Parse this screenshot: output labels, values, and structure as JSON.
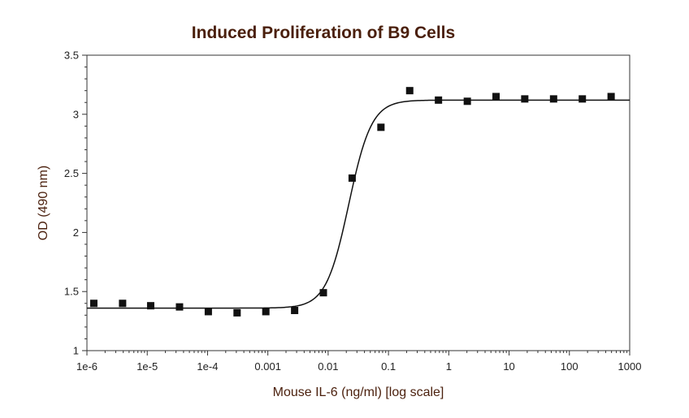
{
  "chart_data": {
    "type": "scatter",
    "title": "Induced Proliferation of B9 Cells",
    "xlabel": "Mouse IL-6 (ng/ml) [log scale]",
    "ylabel": "OD (490 nm)",
    "xscale": "log",
    "xlim": [
      1e-06,
      1000
    ],
    "ylim": [
      1,
      3.5
    ],
    "grid": false,
    "x_ticks": [
      {
        "value": 1e-06,
        "label": "1e-6"
      },
      {
        "value": 1e-05,
        "label": "1e-5"
      },
      {
        "value": 0.0001,
        "label": "1e-4"
      },
      {
        "value": 0.001,
        "label": "0.001"
      },
      {
        "value": 0.01,
        "label": "0.01"
      },
      {
        "value": 0.1,
        "label": "0.1"
      },
      {
        "value": 1,
        "label": "1"
      },
      {
        "value": 10,
        "label": "10"
      },
      {
        "value": 100,
        "label": "100"
      },
      {
        "value": 1000,
        "label": "1000"
      }
    ],
    "y_ticks": [
      {
        "value": 1,
        "label": "1"
      },
      {
        "value": 1.5,
        "label": "1.5"
      },
      {
        "value": 2,
        "label": "2"
      },
      {
        "value": 2.5,
        "label": "2.5"
      },
      {
        "value": 3,
        "label": "3"
      },
      {
        "value": 3.5,
        "label": "3.5"
      }
    ],
    "points": [
      {
        "x": 1.3e-06,
        "y": 1.4
      },
      {
        "x": 3.9e-06,
        "y": 1.4
      },
      {
        "x": 1.14e-05,
        "y": 1.38
      },
      {
        "x": 3.43e-05,
        "y": 1.37
      },
      {
        "x": 0.000103,
        "y": 1.33
      },
      {
        "x": 0.000309,
        "y": 1.32
      },
      {
        "x": 0.000926,
        "y": 1.33
      },
      {
        "x": 0.00278,
        "y": 1.34
      },
      {
        "x": 0.00833,
        "y": 1.49
      },
      {
        "x": 0.025,
        "y": 2.46
      },
      {
        "x": 0.075,
        "y": 2.89
      },
      {
        "x": 0.225,
        "y": 3.2
      },
      {
        "x": 0.675,
        "y": 3.12
      },
      {
        "x": 2.03,
        "y": 3.11
      },
      {
        "x": 6.08,
        "y": 3.15
      },
      {
        "x": 18.2,
        "y": 3.13
      },
      {
        "x": 54.7,
        "y": 3.13
      },
      {
        "x": 164,
        "y": 3.13
      },
      {
        "x": 492,
        "y": 3.15
      }
    ],
    "fit_curve": {
      "type": "4PL",
      "bottom": 1.36,
      "top": 3.12,
      "ec50": 0.022,
      "hill": 2.3
    },
    "colors": {
      "title": "#4a1f0c",
      "axis_label": "#4a1f0c",
      "points": "#111111",
      "curve": "#111111"
    }
  }
}
